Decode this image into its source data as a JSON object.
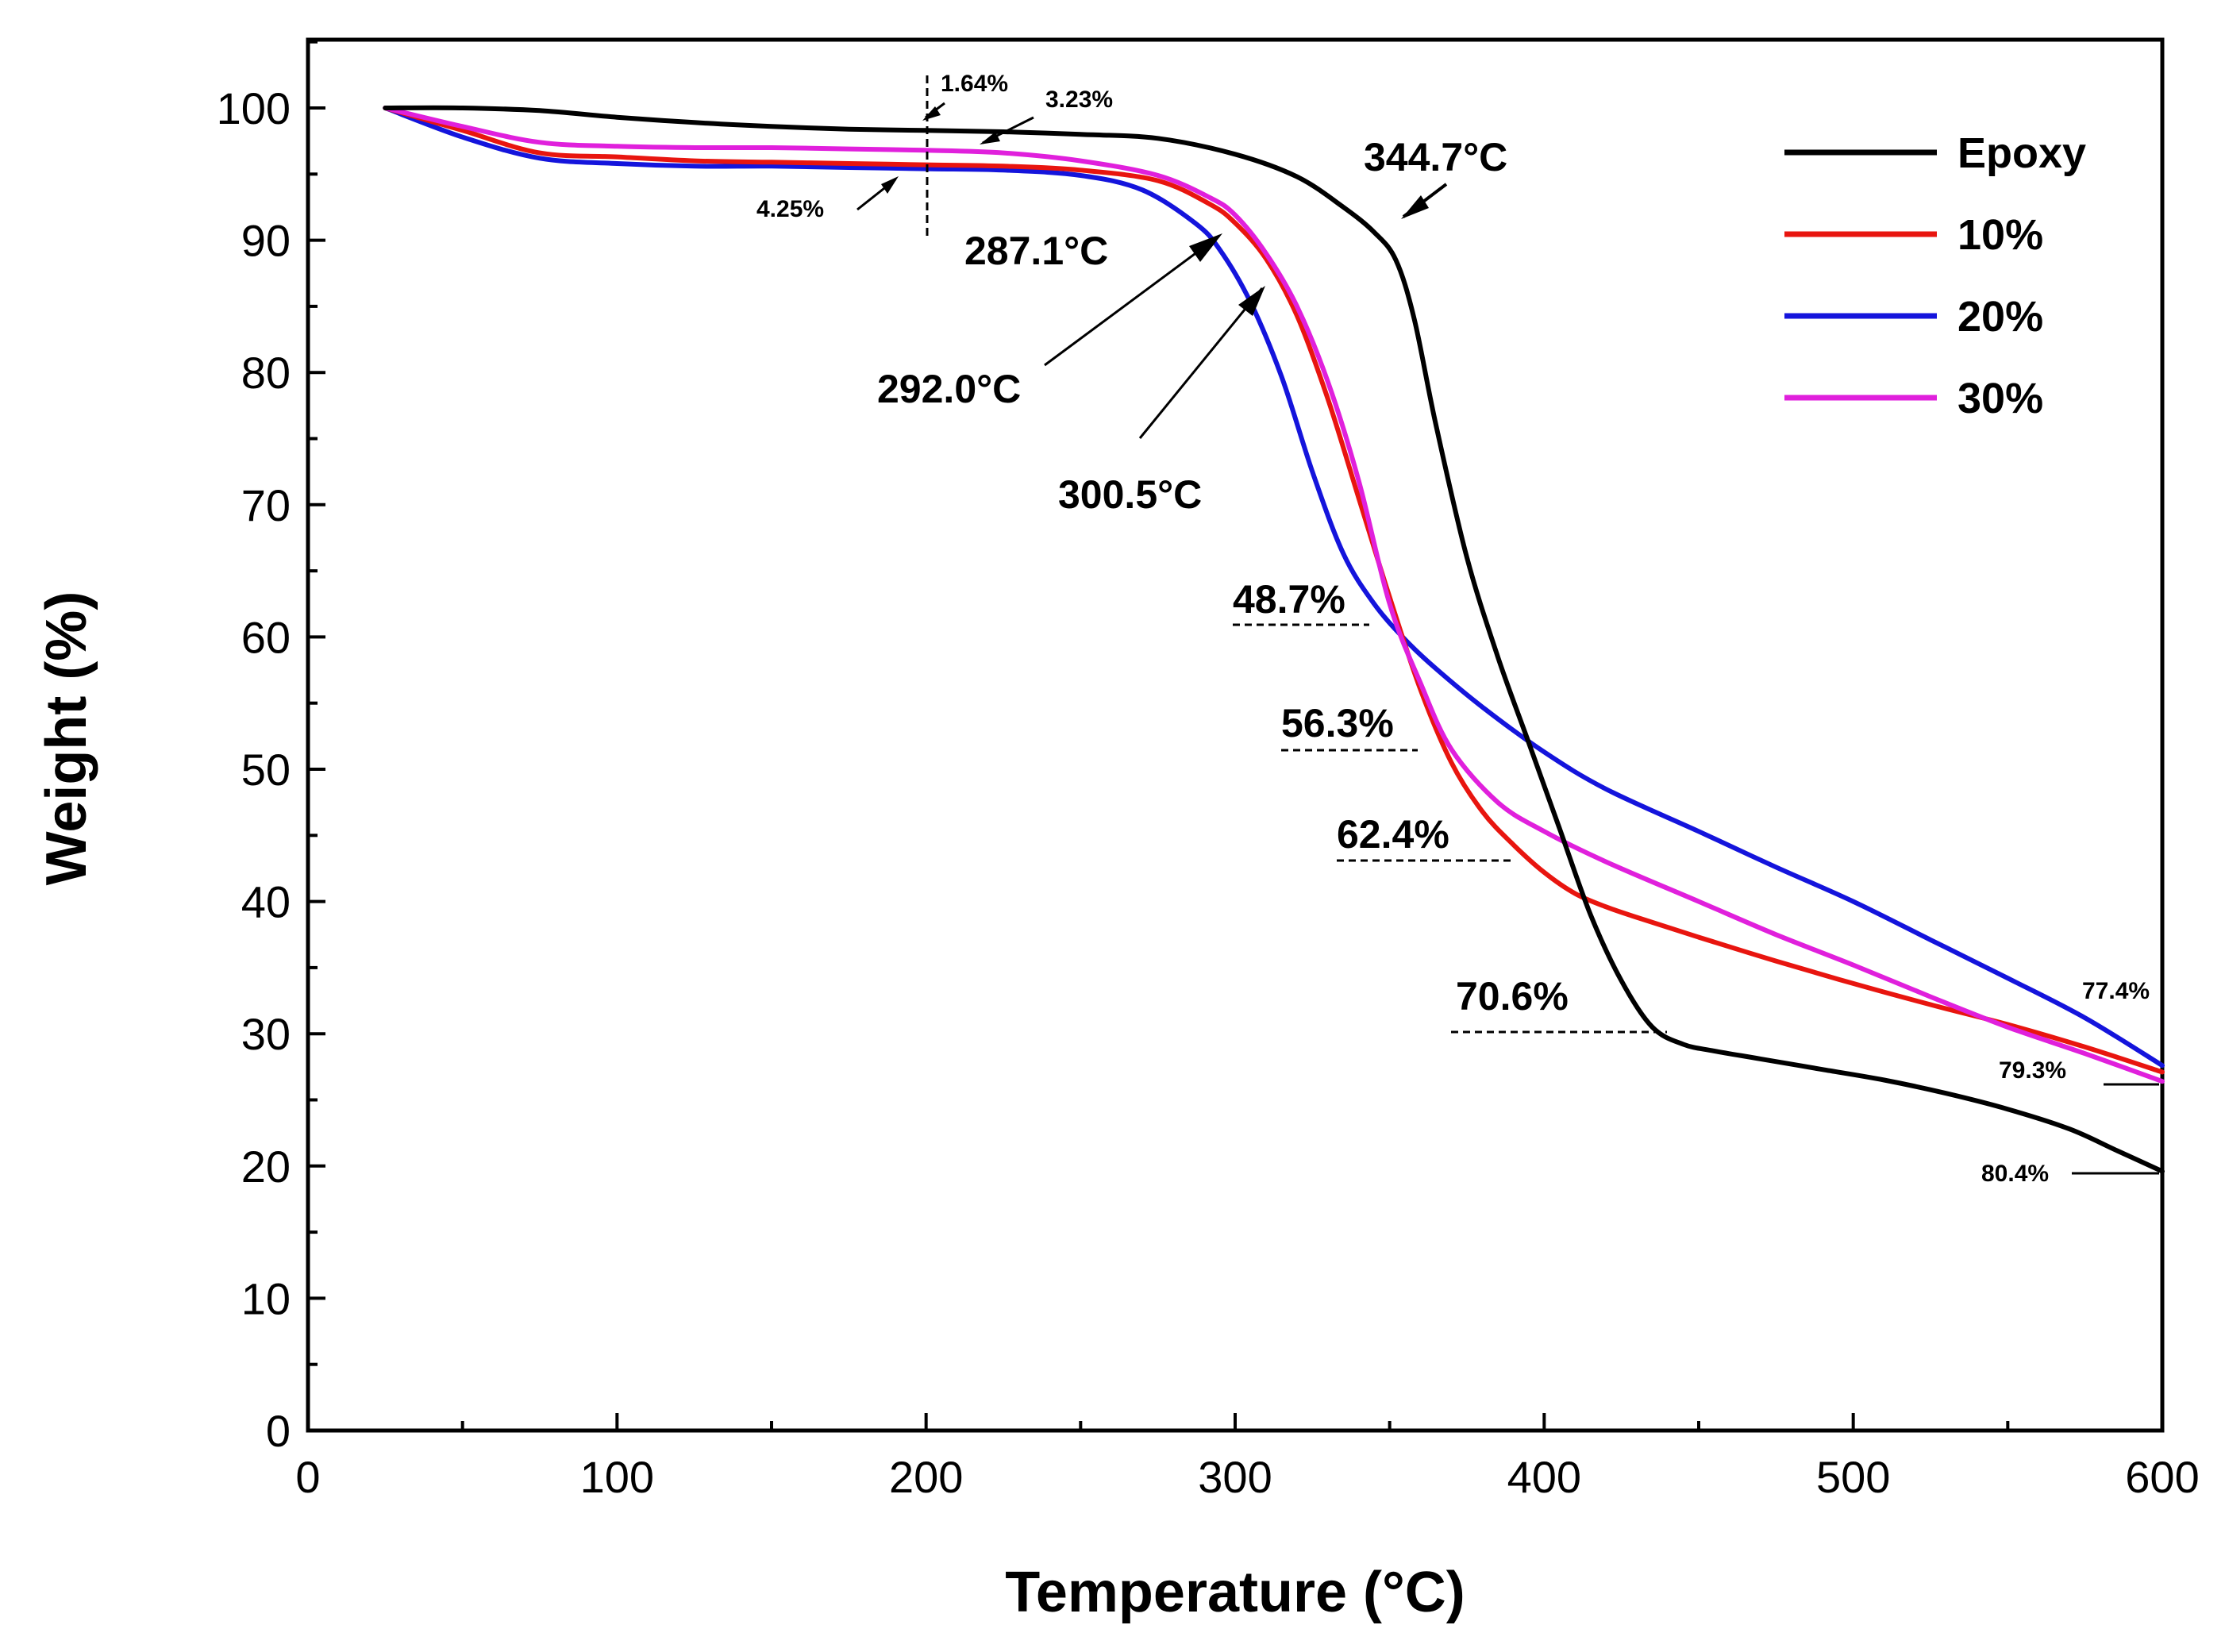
{
  "chart_data": {
    "type": "line",
    "title": "",
    "xlabel": "Temperature (°C)",
    "ylabel": "Weight (%)",
    "xlim": [
      0,
      600
    ],
    "ylim": [
      0,
      105
    ],
    "x_ticks": [
      0,
      100,
      200,
      300,
      400,
      500,
      600
    ],
    "x_tick_labels": [
      "0",
      "100",
      "200",
      "300",
      "400",
      "500",
      "600"
    ],
    "y_ticks": [
      0,
      10,
      20,
      30,
      40,
      50,
      60,
      70,
      80,
      90,
      100
    ],
    "y_tick_labels": [
      "0",
      "10",
      "20",
      "30",
      "40",
      "50",
      "60",
      "70",
      "80",
      "90",
      "100"
    ],
    "grid": false,
    "legend_position": "top-right",
    "series": [
      {
        "name": "Epoxy",
        "color": "#000000",
        "x": [
          25,
          50,
          75,
          100,
          125,
          150,
          175,
          200,
          225,
          250,
          275,
          300,
          320,
          335,
          345,
          352,
          358,
          365,
          375,
          385,
          395,
          405,
          415,
          425,
          435,
          445,
          455,
          470,
          490,
          510,
          530,
          550,
          570,
          585,
          600
        ],
        "y": [
          100,
          100,
          99.8,
          99.3,
          98.9,
          98.6,
          98.4,
          98.3,
          98.2,
          98,
          97.7,
          96.5,
          94.8,
          92.5,
          90.6,
          88.5,
          84,
          76,
          66,
          58.5,
          52,
          45.5,
          39,
          34,
          30.5,
          29.2,
          28.7,
          28.1,
          27.3,
          26.5,
          25.5,
          24.3,
          22.8,
          21.2,
          19.6
        ]
      },
      {
        "name": "10%",
        "color": "#e8150f",
        "x": [
          25,
          50,
          75,
          100,
          125,
          150,
          175,
          200,
          225,
          250,
          275,
          292,
          300,
          310,
          320,
          330,
          340,
          350,
          360,
          370,
          380,
          390,
          400,
          410,
          420,
          430,
          450,
          475,
          500,
          525,
          550,
          575,
          600
        ],
        "y": [
          100,
          98.3,
          96.6,
          96.3,
          96,
          95.9,
          95.8,
          95.7,
          95.6,
          95.3,
          94.5,
          92.7,
          91.3,
          88.6,
          84.3,
          78,
          70.5,
          63,
          56,
          50.5,
          46.8,
          44.3,
          42.2,
          40.6,
          39.6,
          38.8,
          37.3,
          35.5,
          33.8,
          32.2,
          30.7,
          29,
          27.1
        ]
      },
      {
        "name": "20%",
        "color": "#1414dc",
        "x": [
          25,
          50,
          75,
          100,
          125,
          150,
          175,
          200,
          225,
          250,
          270,
          287,
          295,
          305,
          315,
          325,
          335,
          345,
          355,
          365,
          380,
          400,
          420,
          450,
          475,
          500,
          525,
          550,
          575,
          600
        ],
        "y": [
          100,
          97.8,
          96.2,
          95.8,
          95.6,
          95.6,
          95.5,
          95.4,
          95.3,
          94.9,
          93.8,
          91.3,
          89.3,
          85.3,
          79.7,
          72.5,
          66.3,
          62.5,
          59.8,
          57.6,
          54.7,
          51.3,
          48.5,
          45.3,
          42.6,
          40,
          37.1,
          34.2,
          31.2,
          27.6
        ]
      },
      {
        "name": "30%",
        "color": "#e020dc",
        "x": [
          25,
          50,
          75,
          100,
          125,
          150,
          175,
          200,
          225,
          250,
          275,
          292,
          300,
          310,
          320,
          330,
          340,
          350,
          360,
          370,
          385,
          400,
          420,
          450,
          475,
          500,
          525,
          550,
          575,
          600
        ],
        "y": [
          100,
          98.6,
          97.4,
          97.1,
          97,
          97,
          96.9,
          96.8,
          96.6,
          96,
          94.9,
          93.2,
          91.9,
          89,
          85,
          79.3,
          71.8,
          62.5,
          56.5,
          51.5,
          47.5,
          45.3,
          43,
          40,
          37.5,
          35.2,
          32.8,
          30.5,
          28.5,
          26.4
        ]
      }
    ],
    "annotations": {
      "onset_temps": [
        "344.7°C",
        "287.1°C",
        "292.0°C",
        "300.5°C"
      ],
      "loss_at_200": [
        "1.64%",
        "3.23%",
        "4.25%"
      ],
      "loss_levels": [
        "48.7%",
        "56.3%",
        "62.4%",
        "70.6%"
      ],
      "final_loss": [
        "77.4%",
        "79.3%",
        "80.4%"
      ]
    }
  }
}
